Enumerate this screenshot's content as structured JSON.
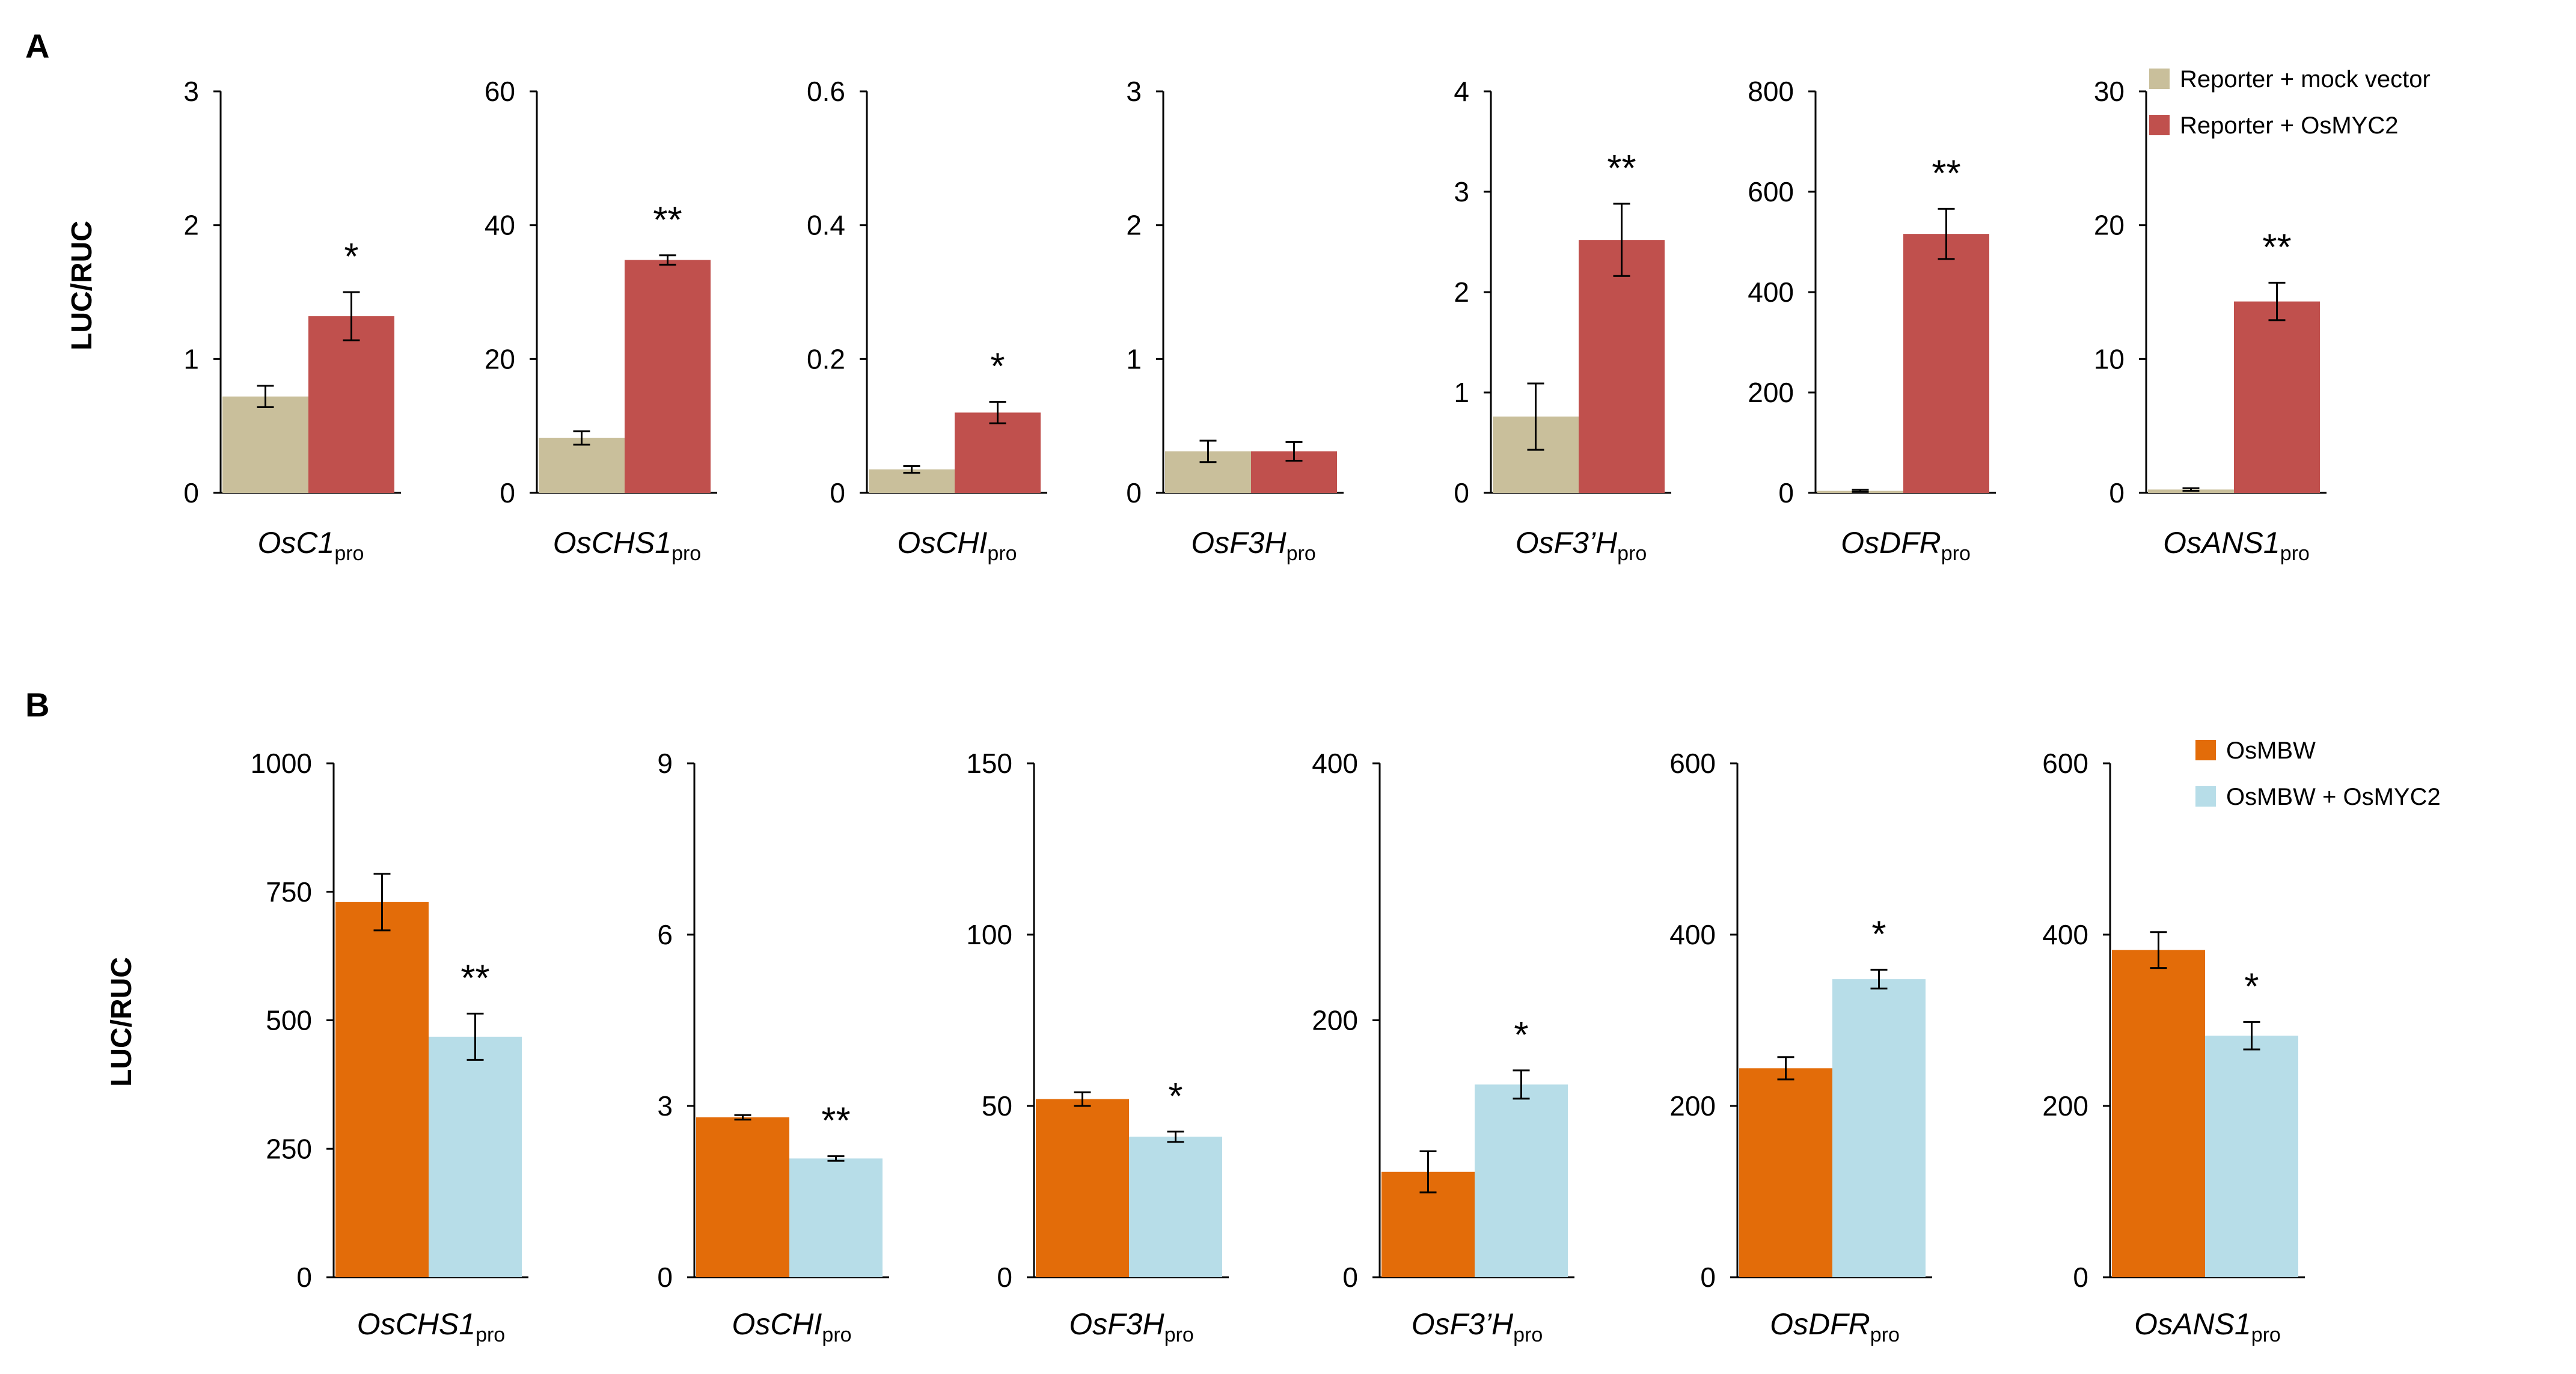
{
  "panels": [
    {
      "letter": "A",
      "ylabel": "LUC/RUC",
      "legend": [
        {
          "label": "Reporter + mock  vector",
          "color": "#c9bf9b"
        },
        {
          "label": "Reporter  + OsMYC2",
          "color": "#c0504d"
        }
      ],
      "chart_data": [
        {
          "type": "bar",
          "gene": "OsC1",
          "subscript": "pro",
          "ylim": [
            0,
            3
          ],
          "yticks": [
            0,
            1,
            2,
            3
          ],
          "tick_labels": [
            "0",
            "1",
            "2",
            "3"
          ],
          "series": [
            {
              "value": 0.72,
              "error": 0.08,
              "color": "#c9bf9b"
            },
            {
              "value": 1.32,
              "error": 0.18,
              "color": "#c0504d"
            }
          ],
          "significance": "*"
        },
        {
          "type": "bar",
          "gene": "OsCHS1",
          "subscript": "pro",
          "ylim": [
            0,
            60
          ],
          "yticks": [
            0,
            20,
            40,
            60
          ],
          "tick_labels": [
            "0",
            "20",
            "40",
            "60"
          ],
          "series": [
            {
              "value": 8.2,
              "error": 1.0,
              "color": "#c9bf9b"
            },
            {
              "value": 34.8,
              "error": 0.7,
              "color": "#c0504d"
            }
          ],
          "significance": "**"
        },
        {
          "type": "bar",
          "gene": "OsCHI",
          "subscript": "pro",
          "ylim": [
            0,
            0.6
          ],
          "yticks": [
            0,
            0.2,
            0.4,
            0.6
          ],
          "tick_labels": [
            "0",
            "0.2",
            "0.4",
            "0.6"
          ],
          "series": [
            {
              "value": 0.035,
              "error": 0.005,
              "color": "#c9bf9b"
            },
            {
              "value": 0.12,
              "error": 0.016,
              "color": "#c0504d"
            }
          ],
          "significance": "*"
        },
        {
          "type": "bar",
          "gene": "OsF3H",
          "subscript": "pro",
          "ylim": [
            0,
            3
          ],
          "yticks": [
            0,
            1,
            2,
            3
          ],
          "tick_labels": [
            "0",
            "1",
            "2",
            "3"
          ],
          "series": [
            {
              "value": 0.31,
              "error": 0.08,
              "color": "#c9bf9b"
            },
            {
              "value": 0.31,
              "error": 0.07,
              "color": "#c0504d"
            }
          ],
          "significance": ""
        },
        {
          "type": "bar",
          "gene": "OsF3’H",
          "subscript": "pro",
          "ylim": [
            0,
            4
          ],
          "yticks": [
            0,
            1,
            2,
            3,
            4
          ],
          "tick_labels": [
            "0",
            "1",
            "2",
            "3",
            "4"
          ],
          "series": [
            {
              "value": 0.76,
              "error": 0.33,
              "color": "#c9bf9b"
            },
            {
              "value": 2.52,
              "error": 0.36,
              "color": "#c0504d"
            }
          ],
          "significance": "**"
        },
        {
          "type": "bar",
          "gene": "OsDFR",
          "subscript": "pro",
          "ylim": [
            0,
            800
          ],
          "yticks": [
            0,
            200,
            400,
            600,
            800
          ],
          "tick_labels": [
            "0",
            "200",
            "400",
            "600",
            "800"
          ],
          "series": [
            {
              "value": 4,
              "error": 2,
              "color": "#c9bf9b"
            },
            {
              "value": 516,
              "error": 50,
              "color": "#c0504d"
            }
          ],
          "significance": "**"
        },
        {
          "type": "bar",
          "gene": "OsANS1",
          "subscript": "pro",
          "ylim": [
            0,
            30
          ],
          "yticks": [
            0,
            10,
            20,
            30
          ],
          "tick_labels": [
            "0",
            "10",
            "20",
            "30"
          ],
          "series": [
            {
              "value": 0.25,
              "error": 0.1,
              "color": "#c9bf9b"
            },
            {
              "value": 14.3,
              "error": 1.4,
              "color": "#c0504d"
            }
          ],
          "significance": "**"
        }
      ]
    },
    {
      "letter": "B",
      "ylabel": "LUC/RUC",
      "legend": [
        {
          "label": "OsMBW",
          "color": "#e36c09"
        },
        {
          "label": "OsMBW + OsMYC2",
          "color": "#b7dde8"
        }
      ],
      "chart_data": [
        {
          "type": "bar",
          "gene": "OsCHS1",
          "subscript": "pro",
          "ylim": [
            0,
            1000
          ],
          "yticks": [
            0,
            250,
            500,
            750,
            1000
          ],
          "tick_labels": [
            "0",
            "250",
            "500",
            "750",
            "1000"
          ],
          "series": [
            {
              "value": 730,
              "error": 55,
              "color": "#e36c09"
            },
            {
              "value": 468,
              "error": 45,
              "color": "#b7dde8"
            }
          ],
          "significance": "**"
        },
        {
          "type": "bar",
          "gene": "OsCHI",
          "subscript": "pro",
          "ylim": [
            0,
            9
          ],
          "yticks": [
            0,
            3,
            6,
            9
          ],
          "tick_labels": [
            "0",
            "3",
            "6",
            "9"
          ],
          "series": [
            {
              "value": 2.8,
              "error": 0.04,
              "color": "#e36c09"
            },
            {
              "value": 2.08,
              "error": 0.04,
              "color": "#b7dde8"
            }
          ],
          "significance": "**"
        },
        {
          "type": "bar",
          "gene": "OsF3H",
          "subscript": "pro",
          "ylim": [
            0,
            150
          ],
          "yticks": [
            0,
            50,
            100,
            150
          ],
          "tick_labels": [
            "0",
            "50",
            "100",
            "150"
          ],
          "series": [
            {
              "value": 52,
              "error": 2,
              "color": "#e36c09"
            },
            {
              "value": 41,
              "error": 1.5,
              "color": "#b7dde8"
            }
          ],
          "significance": "*"
        },
        {
          "type": "bar",
          "gene": "OsF3’H",
          "subscript": "pro",
          "ylim": [
            0,
            400
          ],
          "yticks": [
            0,
            200,
            400
          ],
          "tick_labels": [
            "0",
            "200",
            "400"
          ],
          "series": [
            {
              "value": 82,
              "error": 16,
              "color": "#e36c09"
            },
            {
              "value": 150,
              "error": 11,
              "color": "#b7dde8"
            }
          ],
          "significance": "*"
        },
        {
          "type": "bar",
          "gene": "OsDFR",
          "subscript": "pro",
          "ylim": [
            0,
            600
          ],
          "yticks": [
            0,
            200,
            400,
            600
          ],
          "tick_labels": [
            "0",
            "200",
            "400",
            "600"
          ],
          "series": [
            {
              "value": 244,
              "error": 13,
              "color": "#e36c09"
            },
            {
              "value": 348,
              "error": 11,
              "color": "#b7dde8"
            }
          ],
          "significance": "*"
        },
        {
          "type": "bar",
          "gene": "OsANS1",
          "subscript": "pro",
          "ylim": [
            0,
            600
          ],
          "yticks": [
            0,
            200,
            400,
            600
          ],
          "tick_labels": [
            "0",
            "200",
            "400",
            "600"
          ],
          "series": [
            {
              "value": 382,
              "error": 21,
              "color": "#e36c09"
            },
            {
              "value": 282,
              "error": 16,
              "color": "#b7dde8"
            }
          ],
          "significance": "*"
        }
      ]
    }
  ]
}
